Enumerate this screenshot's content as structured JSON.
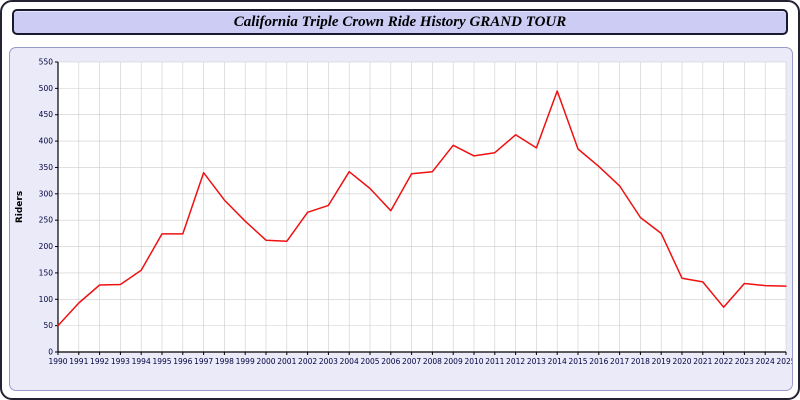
{
  "header": {
    "title": "California Triple Crown Ride History GRAND TOUR"
  },
  "chart_data": {
    "type": "line",
    "title": "California Triple Crown Ride History GRAND TOUR",
    "xlabel": "",
    "ylabel": "Riders",
    "ylim": [
      0,
      550
    ],
    "ytick_step": 50,
    "grid": true,
    "legend_position": "none",
    "line_color": "#ee1111",
    "x": [
      1990,
      1991,
      1992,
      1993,
      1994,
      1995,
      1996,
      1997,
      1998,
      1999,
      2000,
      2001,
      2002,
      2003,
      2004,
      2005,
      2006,
      2007,
      2008,
      2009,
      2010,
      2011,
      2012,
      2013,
      2014,
      2015,
      2016,
      2017,
      2018,
      2019,
      2020,
      2021,
      2022,
      2023,
      2024,
      2025
    ],
    "values": [
      50,
      93,
      127,
      128,
      155,
      224,
      224,
      340,
      288,
      248,
      212,
      210,
      265,
      278,
      342,
      310,
      268,
      338,
      342,
      392,
      372,
      378,
      412,
      387,
      495,
      385,
      352,
      315,
      255,
      225,
      140,
      133,
      85,
      130,
      126,
      125
    ]
  },
  "colors": {
    "grid": "#cccccc",
    "axis": "#000000",
    "tick_text": "#000040",
    "plot_bg": "#ffffff"
  }
}
